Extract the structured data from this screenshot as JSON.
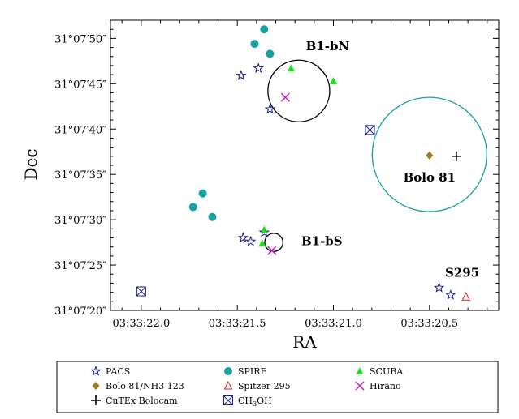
{
  "chart_data": {
    "type": "scatter",
    "xlabel": "RA",
    "ylabel": "Dec",
    "x_axis_note": "RA in seconds of 03h33m; axis inverted (east to the left)",
    "xlim": [
      22.16,
      20.14
    ],
    "ylim": [
      20.0,
      52.0
    ],
    "x_ticks": [
      {
        "value": 22.0,
        "label": "03:33:22.0"
      },
      {
        "value": 21.5,
        "label": "03:33:21.5"
      },
      {
        "value": 21.0,
        "label": "03:33:21.0"
      },
      {
        "value": 20.5,
        "label": "03:33:20.5"
      }
    ],
    "y_ticks": [
      {
        "value": 20,
        "label": "31°07′20″"
      },
      {
        "value": 25,
        "label": "31°07′25″"
      },
      {
        "value": 30,
        "label": "31°07′30″"
      },
      {
        "value": 35,
        "label": "31°07′35″"
      },
      {
        "value": 40,
        "label": "31°07′40″"
      },
      {
        "value": 45,
        "label": "31°07′45″"
      },
      {
        "value": 50,
        "label": "31°07′50″"
      }
    ],
    "series": [
      {
        "name": "PACS",
        "marker": "star",
        "color": "#1c1c8c",
        "points": [
          [
            21.48,
            45.9
          ],
          [
            21.39,
            46.7
          ],
          [
            21.33,
            42.2
          ],
          [
            21.47,
            28.0
          ],
          [
            21.43,
            27.6
          ],
          [
            21.36,
            28.6
          ],
          [
            20.45,
            22.5
          ],
          [
            20.39,
            21.7
          ]
        ]
      },
      {
        "name": "SPIRE",
        "marker": "circle",
        "color": "#17a2a2",
        "points": [
          [
            21.36,
            51.0
          ],
          [
            21.41,
            49.4
          ],
          [
            21.33,
            48.3
          ],
          [
            21.73,
            31.4
          ],
          [
            21.68,
            32.9
          ],
          [
            21.63,
            30.3
          ]
        ]
      },
      {
        "name": "SCUBA",
        "marker": "triangle",
        "color": "#22dd22",
        "points": [
          [
            21.22,
            46.7
          ],
          [
            21.0,
            45.3
          ],
          [
            21.36,
            28.9
          ],
          [
            21.37,
            27.4
          ]
        ]
      },
      {
        "name": "Bolo 81/NH3 123",
        "marker": "diamond",
        "color": "#9b7d1a",
        "points": [
          [
            20.5,
            37.1
          ]
        ]
      },
      {
        "name": "Spitzer 295",
        "marker": "open-triangle",
        "color": "#d62020",
        "points": [
          [
            20.31,
            21.5
          ]
        ]
      },
      {
        "name": "Hirano",
        "marker": "x",
        "color": "#c21ec2",
        "points": [
          [
            21.25,
            43.5
          ],
          [
            21.32,
            26.6
          ]
        ]
      },
      {
        "name": "CuTEx Bolocam",
        "marker": "plus",
        "color": "#000000",
        "points": [
          [
            20.36,
            37.0
          ]
        ]
      },
      {
        "name": "CH3OH",
        "marker": "boxed-x",
        "color": "#1c1c8c",
        "points": [
          [
            20.81,
            39.9
          ],
          [
            22.0,
            22.1
          ]
        ]
      }
    ],
    "circles": [
      {
        "label": "B1-bN",
        "color": "#000000",
        "center": [
          21.18,
          44.2
        ],
        "radius_arcsec": 3.4
      },
      {
        "label": "Bolo 81",
        "color": "#17a2a2",
        "center": [
          20.5,
          37.2
        ],
        "radius_arcsec": 6.3
      },
      {
        "label": "B1-bS",
        "color": "#000000",
        "center": [
          21.31,
          27.5
        ],
        "radius_arcsec": 1.0
      }
    ],
    "annotations": [
      {
        "text": "B1-bN",
        "x": 21.03,
        "y": 48.7
      },
      {
        "text": "Bolo 81",
        "x": 20.5,
        "y": 34.2
      },
      {
        "text": "B1-bS",
        "x": 21.06,
        "y": 27.2
      },
      {
        "text": "S295",
        "x": 20.33,
        "y": 23.7
      }
    ],
    "legend": {
      "position": "below",
      "entries": [
        {
          "label": "PACS",
          "marker": "star",
          "color": "#1c1c8c"
        },
        {
          "label": "SPIRE",
          "marker": "circle",
          "color": "#17a2a2"
        },
        {
          "label": "SCUBA",
          "marker": "triangle",
          "color": "#22dd22"
        },
        {
          "label": "Bolo 81/NH3 123",
          "marker": "diamond",
          "color": "#9b7d1a"
        },
        {
          "label": "Spitzer 295",
          "marker": "open-triangle",
          "color": "#d62020"
        },
        {
          "label": "Hirano",
          "marker": "x",
          "color": "#c21ec2"
        },
        {
          "label": "CuTEx Bolocam",
          "marker": "plus",
          "color": "#000000"
        },
        {
          "label": "CH",
          "sub": "3",
          "tail": "OH",
          "marker": "boxed-x",
          "color": "#1c1c8c"
        }
      ]
    }
  }
}
